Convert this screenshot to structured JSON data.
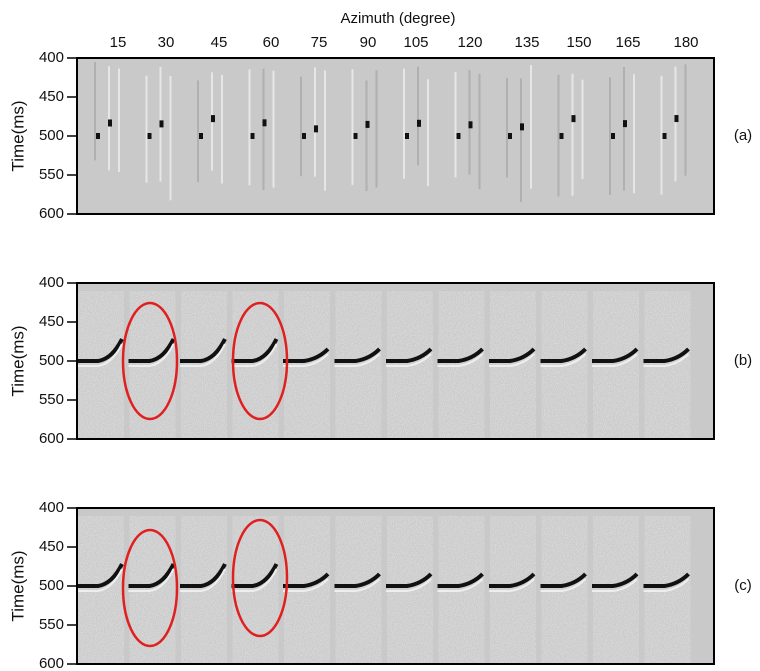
{
  "x_axis": {
    "title": "Azimuth (degree)",
    "ticks": [
      15,
      30,
      45,
      60,
      75,
      90,
      105,
      120,
      135,
      150,
      165,
      180
    ]
  },
  "panels": [
    {
      "label": "(a)",
      "y_axis": {
        "title": "Time(ms)",
        "ylim": [
          400,
          600
        ],
        "yticks": [
          400,
          450,
          500,
          550,
          600
        ]
      }
    },
    {
      "label": "(b)",
      "y_axis": {
        "title": "Time(ms)",
        "ylim": [
          400,
          600
        ],
        "yticks": [
          400,
          450,
          500,
          550,
          600
        ]
      }
    },
    {
      "label": "(c)",
      "y_axis": {
        "title": "Time(ms)",
        "ylim": [
          400,
          600
        ],
        "yticks": [
          400,
          450,
          500,
          550,
          600
        ]
      }
    }
  ]
}
